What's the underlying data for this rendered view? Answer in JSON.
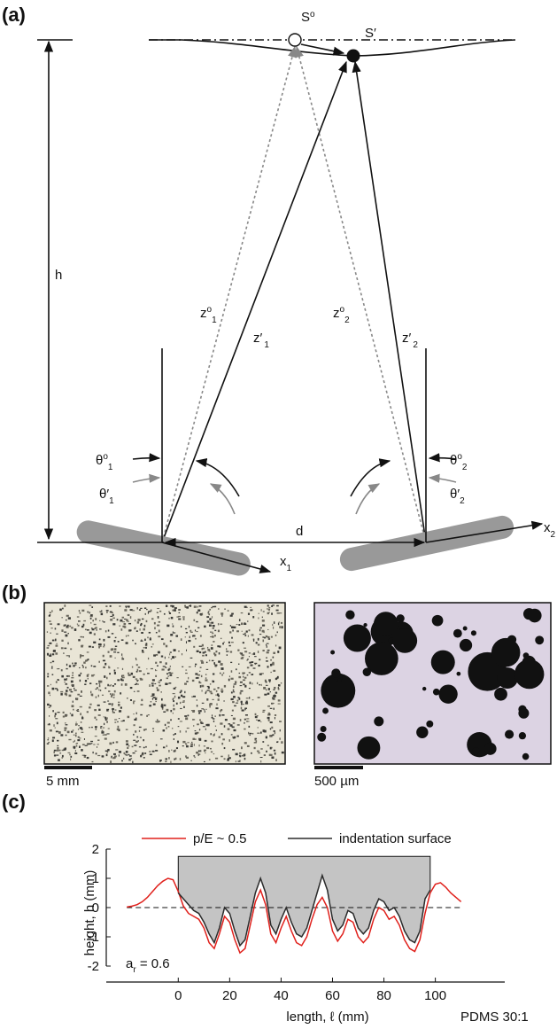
{
  "diagram": {
    "label": "(a)",
    "s0": [
      "S",
      "o"
    ],
    "s1": "S′",
    "h": "h",
    "d": "d",
    "z01": [
      "z",
      "o",
      "1"
    ],
    "zp1": [
      "z′",
      "1"
    ],
    "z02": [
      "z",
      "o",
      "2"
    ],
    "zp2": [
      "z′",
      "2"
    ],
    "t01": [
      "θ",
      "o",
      "1"
    ],
    "tp1": [
      "θ′",
      "1"
    ],
    "t02": [
      "θ",
      "o",
      "2"
    ],
    "tp2": [
      "θ′",
      "2"
    ],
    "x1": [
      "x",
      "1"
    ],
    "x2": [
      "x",
      "2"
    ]
  },
  "images": {
    "label": "(b)",
    "scale_left": "5 mm",
    "scale_right": "500 µm"
  },
  "chart_data": {
    "type": "line",
    "panel_label": "(c)",
    "x_label": "length, ℓ (mm)",
    "y_label": "height, h (mm)",
    "annotation": [
      "a",
      "r",
      " = 0.6"
    ],
    "note": "PDMS 30:1",
    "xlim": [
      -28,
      127
    ],
    "xticks": [
      0,
      20,
      40,
      60,
      80,
      100
    ],
    "ylim": [
      -2,
      2
    ],
    "yticks": [
      -2,
      -1,
      0,
      1,
      2
    ],
    "reference_line": 0,
    "indenter_top": 1.75,
    "series": [
      {
        "name": "p/E ~ 0.5",
        "color": "#e0201b",
        "x": [
          -20,
          -18,
          -16,
          -14,
          -12,
          -10,
          -8,
          -6,
          -4,
          -2,
          0,
          2,
          4,
          6,
          8,
          10,
          12,
          14,
          16,
          18,
          20,
          22,
          24,
          26,
          28,
          30,
          32,
          34,
          36,
          38,
          40,
          42,
          44,
          46,
          48,
          50,
          52,
          54,
          56,
          58,
          60,
          62,
          64,
          66,
          68,
          70,
          72,
          74,
          76,
          78,
          80,
          82,
          84,
          86,
          88,
          90,
          92,
          94,
          96,
          98,
          100,
          102,
          104,
          106,
          108,
          110
        ],
        "values": [
          0.02,
          0.05,
          0.1,
          0.2,
          0.35,
          0.55,
          0.75,
          0.9,
          1.0,
          0.95,
          0.55,
          0.05,
          -0.2,
          -0.3,
          -0.4,
          -0.7,
          -1.2,
          -1.4,
          -0.9,
          -0.3,
          -0.5,
          -1.1,
          -1.55,
          -1.4,
          -0.6,
          0.2,
          0.6,
          0.1,
          -0.9,
          -1.2,
          -0.7,
          -0.3,
          -0.8,
          -1.2,
          -1.3,
          -1.0,
          -0.4,
          0.1,
          0.35,
          0.0,
          -0.8,
          -1.15,
          -0.9,
          -0.4,
          -0.5,
          -1.0,
          -1.2,
          -1.0,
          -0.4,
          0.0,
          -0.1,
          -0.4,
          -0.3,
          -0.6,
          -1.1,
          -1.4,
          -1.5,
          -1.1,
          -0.2,
          0.5,
          0.8,
          0.85,
          0.7,
          0.5,
          0.35,
          0.2
        ]
      },
      {
        "name": "indentation surface",
        "color": "#2b2b2b",
        "x": [
          0,
          2,
          4,
          6,
          8,
          10,
          12,
          14,
          16,
          18,
          20,
          22,
          24,
          26,
          28,
          30,
          32,
          34,
          36,
          38,
          40,
          42,
          44,
          46,
          48,
          50,
          52,
          54,
          56,
          58,
          60,
          62,
          64,
          66,
          68,
          70,
          72,
          74,
          76,
          78,
          80,
          82,
          84,
          86,
          88,
          90,
          92,
          94,
          96,
          98
        ],
        "values": [
          0.5,
          0.3,
          0.1,
          -0.1,
          -0.2,
          -0.5,
          -0.9,
          -1.2,
          -0.7,
          0.0,
          -0.2,
          -0.8,
          -1.3,
          -1.1,
          -0.3,
          0.5,
          1.0,
          0.5,
          -0.6,
          -0.9,
          -0.4,
          0.0,
          -0.5,
          -0.9,
          -1.0,
          -0.7,
          -0.1,
          0.5,
          1.1,
          0.6,
          -0.4,
          -0.8,
          -0.6,
          -0.1,
          -0.2,
          -0.7,
          -0.9,
          -0.7,
          -0.1,
          0.3,
          0.2,
          -0.1,
          0.0,
          -0.3,
          -0.8,
          -1.1,
          -1.2,
          -0.8,
          0.3,
          0.6
        ]
      }
    ]
  }
}
